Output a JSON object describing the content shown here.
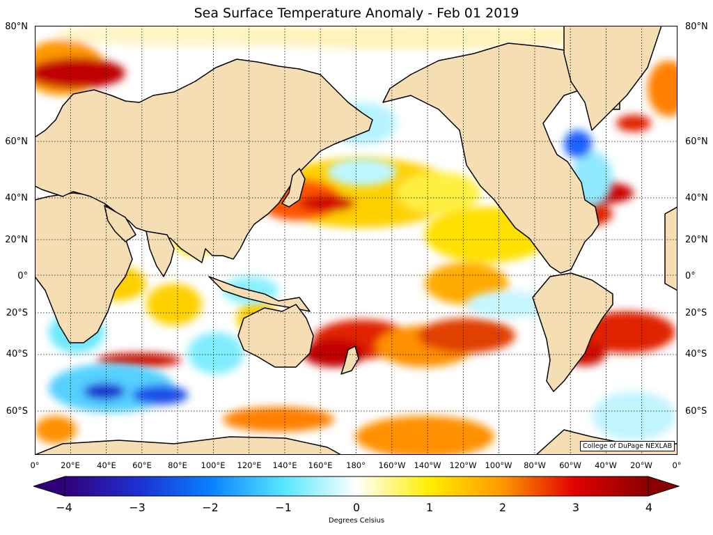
{
  "title": "Sea Surface Temperature Anomaly - Feb 01 2019",
  "lat_labels": [
    "80°N",
    "60°N",
    "40°N",
    "20°N",
    "0°",
    "20°S",
    "40°S",
    "60°S"
  ],
  "lon_labels": [
    "0°",
    "20°E",
    "40°E",
    "60°E",
    "80°E",
    "100°E",
    "120°E",
    "140°E",
    "160°E",
    "180°",
    "160°W",
    "140°W",
    "120°W",
    "100°W",
    "80°W",
    "60°W",
    "40°W",
    "20°W",
    "0°"
  ],
  "credit": "College of DuPage NEXLAB",
  "colorbar": {
    "ticks": [
      "−4",
      "−3",
      "−2",
      "−1",
      "0",
      "1",
      "2",
      "3",
      "4"
    ],
    "units": "Degrees Celsius",
    "colors": [
      "#30007a",
      "#1d2fd0",
      "#0a80ff",
      "#56e8ff",
      "#ffffff",
      "#ffee00",
      "#ff9800",
      "#e00000",
      "#8a0000"
    ]
  },
  "colors": {
    "land": "#f5deb3",
    "coastline": "#000000",
    "grid": "#000000",
    "ocean_neutral": "#ffffff"
  }
}
